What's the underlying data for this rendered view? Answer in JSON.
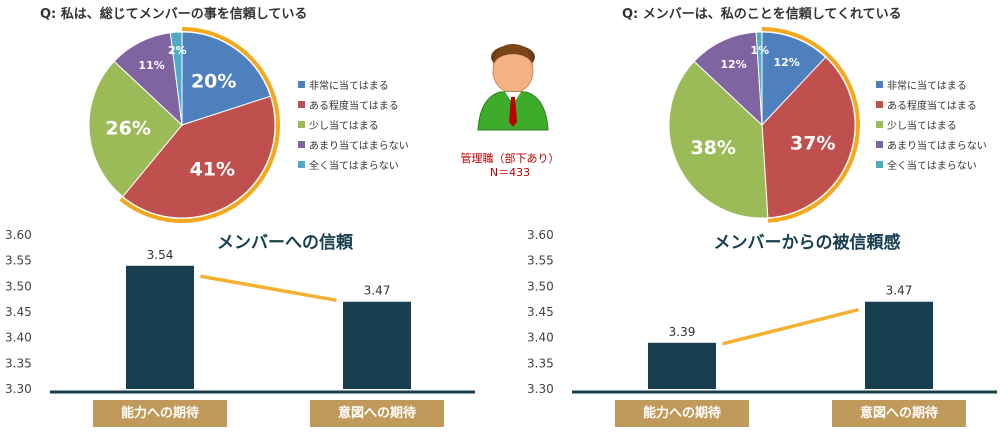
{
  "center": {
    "label_line1": "管理職（部下あり）",
    "label_line2": "N＝433"
  },
  "legend_labels": [
    "非常に当てはまる",
    "ある程度当てはまる",
    "少し当てはまる",
    "あまり当てはまらない",
    "全く当てはまらない"
  ],
  "colors": {
    "blue": "#4e80bd",
    "red": "#c0504d",
    "green": "#9bbb59",
    "purple": "#8064a2",
    "teal": "#4bacc6",
    "bar": "#173f4f",
    "line": "#f4b030",
    "axis_band": "#c09a5b",
    "ring": "#f4a81c"
  },
  "chart_data": [
    {
      "type": "pie",
      "title": "Q:  私は、総じてメンバーの事を信頼している",
      "labels": [
        "非常に当てはまる",
        "ある程度当てはまる",
        "少し当てはまる",
        "あまり当てはまらない",
        "全く当てはまらない"
      ],
      "values": [
        20,
        41,
        26,
        11,
        2
      ],
      "value_labels": [
        "20%",
        "41%",
        "26%",
        "11%",
        "2%"
      ],
      "highlighted": [
        0,
        1
      ]
    },
    {
      "type": "pie",
      "title": "Q:  メンバーは、私のことを信頼してくれている",
      "labels": [
        "非常に当てはまる",
        "ある程度当てはまる",
        "少し当てはまる",
        "あまり当てはまらない",
        "全く当てはまらない"
      ],
      "values": [
        12,
        37,
        38,
        12,
        1
      ],
      "value_labels": [
        "12%",
        "37%",
        "38%",
        "12%",
        "1%"
      ],
      "highlighted": [
        0,
        1
      ]
    },
    {
      "type": "bar",
      "title": "メンバーへの信頼",
      "categories": [
        "能力への期待",
        "意図への期待"
      ],
      "values": [
        3.54,
        3.47
      ],
      "value_labels": [
        "3.54",
        "3.47"
      ],
      "ylim": [
        3.3,
        3.6
      ],
      "yticks": [
        "3.30",
        "3.35",
        "3.40",
        "3.45",
        "3.50",
        "3.55",
        "3.60"
      ],
      "trend_line": true
    },
    {
      "type": "bar",
      "title": "メンバーからの被信頼感",
      "categories": [
        "能力への期待",
        "意図への期待"
      ],
      "values": [
        3.39,
        3.47
      ],
      "value_labels": [
        "3.39",
        "3.47"
      ],
      "ylim": [
        3.3,
        3.6
      ],
      "yticks": [
        "3.30",
        "3.35",
        "3.40",
        "3.45",
        "3.50",
        "3.55",
        "3.60"
      ],
      "trend_line": true
    }
  ]
}
